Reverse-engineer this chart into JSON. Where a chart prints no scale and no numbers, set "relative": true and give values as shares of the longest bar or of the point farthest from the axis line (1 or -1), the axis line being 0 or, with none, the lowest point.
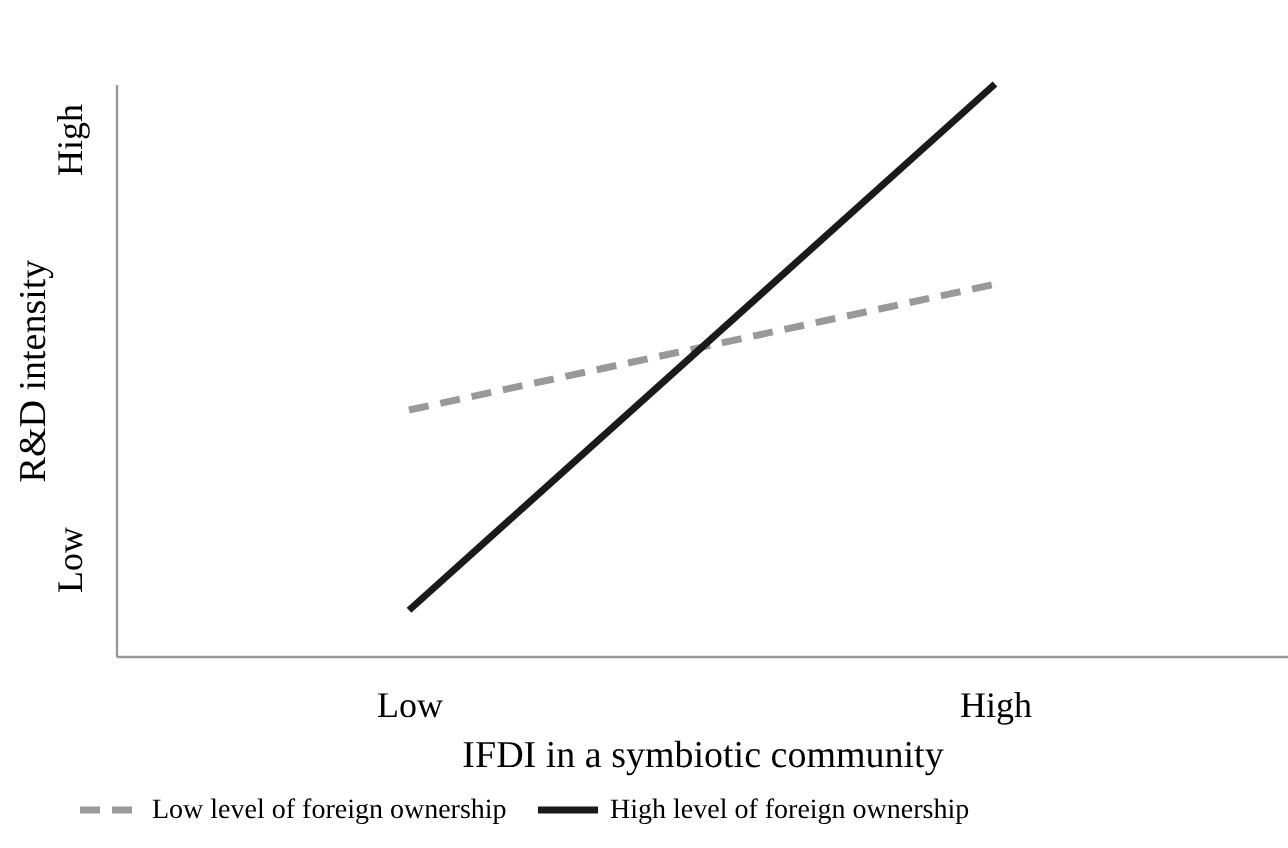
{
  "chart_data": {
    "type": "line",
    "xlabel": "IFDI in a symbiotic community",
    "ylabel": "R&D intensity",
    "categories": [
      "Low",
      "High"
    ],
    "relative": true,
    "series": [
      {
        "name": "Low level of foreign ownership",
        "color": "#999999",
        "line_style": "dashed",
        "values": [
          0.43,
          0.65
        ]
      },
      {
        "name": "High level of foreign ownership",
        "color": "#1a1a1a",
        "line_style": "solid",
        "values": [
          0.08,
          1
        ]
      }
    ],
    "annotations": [
      "Low",
      "High"
    ],
    "grid": false,
    "legend": "bottom",
    "marker": "none"
  }
}
